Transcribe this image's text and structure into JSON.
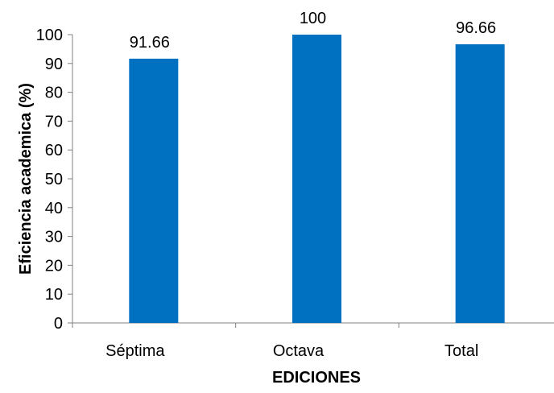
{
  "chart_data": {
    "type": "bar",
    "categories": [
      "Séptima",
      "Octava",
      "Total"
    ],
    "values": [
      91.66,
      100,
      96.66
    ],
    "data_labels": [
      "91.66",
      "100",
      "96.66"
    ],
    "xlabel": "EDICIONES",
    "ylabel": "Eficiencia academica (%)",
    "ylim": [
      0,
      100
    ],
    "yticks": [
      "0",
      "10",
      "20",
      "30",
      "40",
      "50",
      "60",
      "70",
      "80",
      "90",
      "100"
    ],
    "grid": false,
    "legend": "none",
    "bar_color": "#0070C0",
    "axis_color": "#808080"
  }
}
